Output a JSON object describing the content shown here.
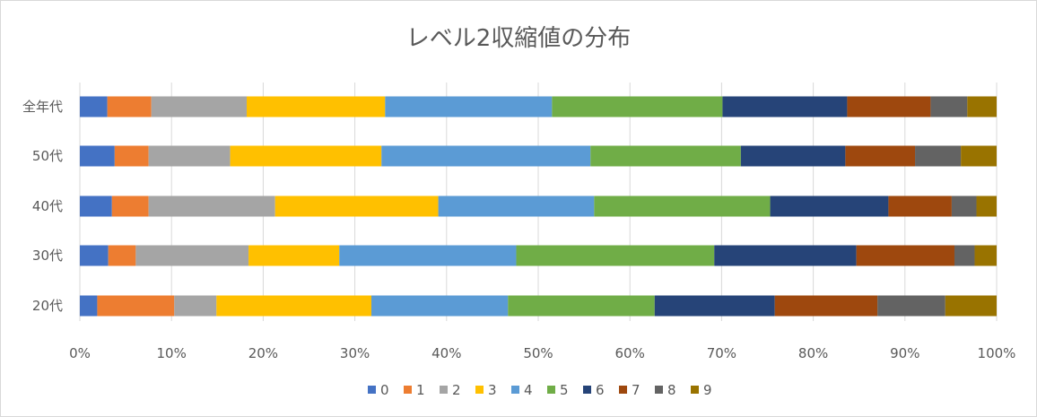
{
  "chart_data": {
    "type": "bar",
    "orientation": "horizontal",
    "stacked": "percent",
    "title": "レベル2収縮値の分布",
    "categories": [
      "全年代",
      "50代",
      "40代",
      "30代",
      "20代"
    ],
    "xlim": [
      0,
      100
    ],
    "x_ticks": [
      "0%",
      "10%",
      "20%",
      "30%",
      "40%",
      "50%",
      "60%",
      "70%",
      "80%",
      "90%",
      "100%"
    ],
    "grid": "vertical",
    "legend_position": "bottom",
    "series": [
      {
        "name": "0",
        "color": "#4472c4",
        "values": [
          3.0,
          3.8,
          3.5,
          3.1,
          1.9
        ]
      },
      {
        "name": "1",
        "color": "#ed7d31",
        "values": [
          4.8,
          3.7,
          4.0,
          3.0,
          8.4
        ]
      },
      {
        "name": "2",
        "color": "#a5a5a5",
        "values": [
          10.4,
          8.9,
          13.8,
          12.3,
          4.6
        ]
      },
      {
        "name": "3",
        "color": "#ffc000",
        "values": [
          15.1,
          16.5,
          17.8,
          9.9,
          16.9
        ]
      },
      {
        "name": "4",
        "color": "#5b9bd5",
        "values": [
          18.2,
          22.8,
          17.0,
          19.3,
          14.9
        ]
      },
      {
        "name": "5",
        "color": "#70ad47",
        "values": [
          18.6,
          16.4,
          19.2,
          21.6,
          16.0
        ]
      },
      {
        "name": "6",
        "color": "#264478",
        "values": [
          13.6,
          11.4,
          12.9,
          15.5,
          13.1
        ]
      },
      {
        "name": "7",
        "color": "#9e480e",
        "values": [
          9.1,
          7.6,
          6.9,
          10.7,
          11.2
        ]
      },
      {
        "name": "8",
        "color": "#636363",
        "values": [
          4.0,
          5.0,
          2.7,
          2.2,
          7.4
        ]
      },
      {
        "name": "9",
        "color": "#997300",
        "values": [
          3.2,
          3.9,
          2.2,
          2.4,
          5.6
        ]
      }
    ]
  }
}
